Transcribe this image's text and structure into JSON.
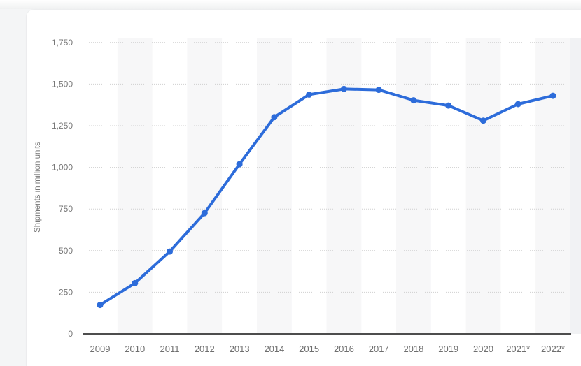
{
  "page": {
    "background_color": "#f4f5f6",
    "card_background_color": "#ffffff"
  },
  "chart_data": {
    "type": "line",
    "ylabel": "Shipments in million units",
    "xlabel": "",
    "categories": [
      "2009",
      "2010",
      "2011",
      "2012",
      "2013",
      "2014",
      "2015",
      "2016",
      "2017",
      "2018",
      "2019",
      "2020",
      "2021*",
      "2022*"
    ],
    "values": [
      173.5,
      304.7,
      494.5,
      725.3,
      1018.7,
      1301.7,
      1437.2,
      1470.6,
      1465.5,
      1402.6,
      1371.1,
      1280.8,
      1380,
      1430
    ],
    "yticks": [
      0,
      250,
      500,
      750,
      1000,
      1250,
      1500,
      1750
    ],
    "ytick_labels": [
      "0",
      "250",
      "500",
      "750",
      "1,000",
      "1,250",
      "1,500",
      "1,750"
    ],
    "ylim": [
      0,
      1750
    ],
    "grid": "horizontal-dotted",
    "legend": "none",
    "colors": {
      "line": "#2d6cda",
      "marker": "#2d6cda",
      "gridline": "#cfcfcf",
      "axis_line": "#4d4d4d",
      "plot_band": "#f7f7f8",
      "right_band": "#f1f2f4",
      "ytick_label": "#777777",
      "xtick_label": "#6e6e6e",
      "axis_title": "#777777"
    }
  }
}
